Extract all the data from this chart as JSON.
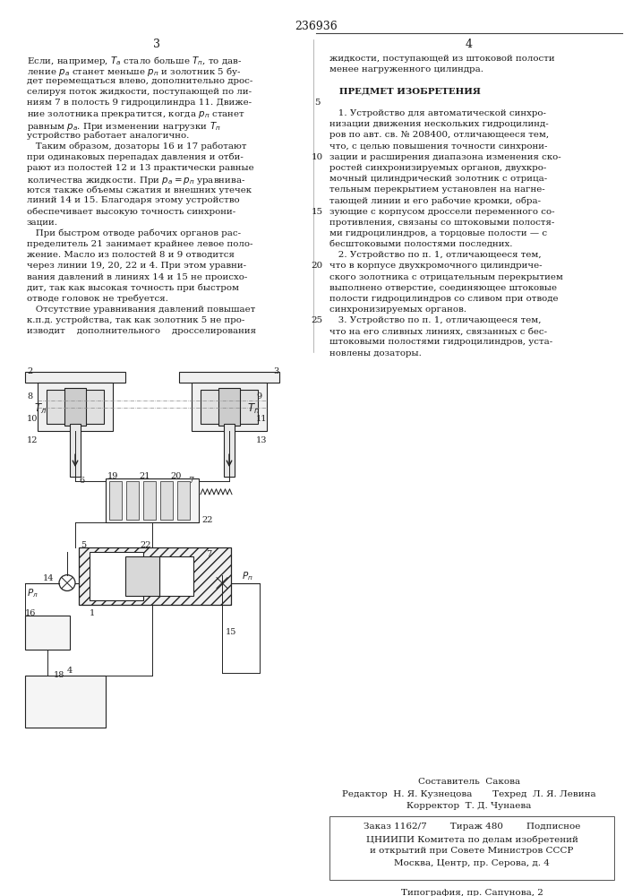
{
  "title": "236936",
  "page_col_left": "3",
  "page_col_right": "4",
  "bg_color": "#ffffff",
  "text_color": "#1a1a1a",
  "footer_composer": "Составитель  Сакова",
  "footer_editor": "Редактор  Н. Я. Кузнецова       Техред  Л. Я. Левина",
  "footer_corrector": "Корректор  Т. Д. Чунаева",
  "footer_order": "Заказ 1162/7        Тираж 480        Подписное",
  "footer_org": "ЦНИИПИ Комитета по делам изобретений",
  "footer_org2": "и открытий при Совете Министров СССР",
  "footer_org3": "Москва, Центр, пр. Серова, д. 4",
  "footer_print": "Типография, пр. Сапунова, 2",
  "draw_color": "#222222",
  "hatch_color": "#555555"
}
